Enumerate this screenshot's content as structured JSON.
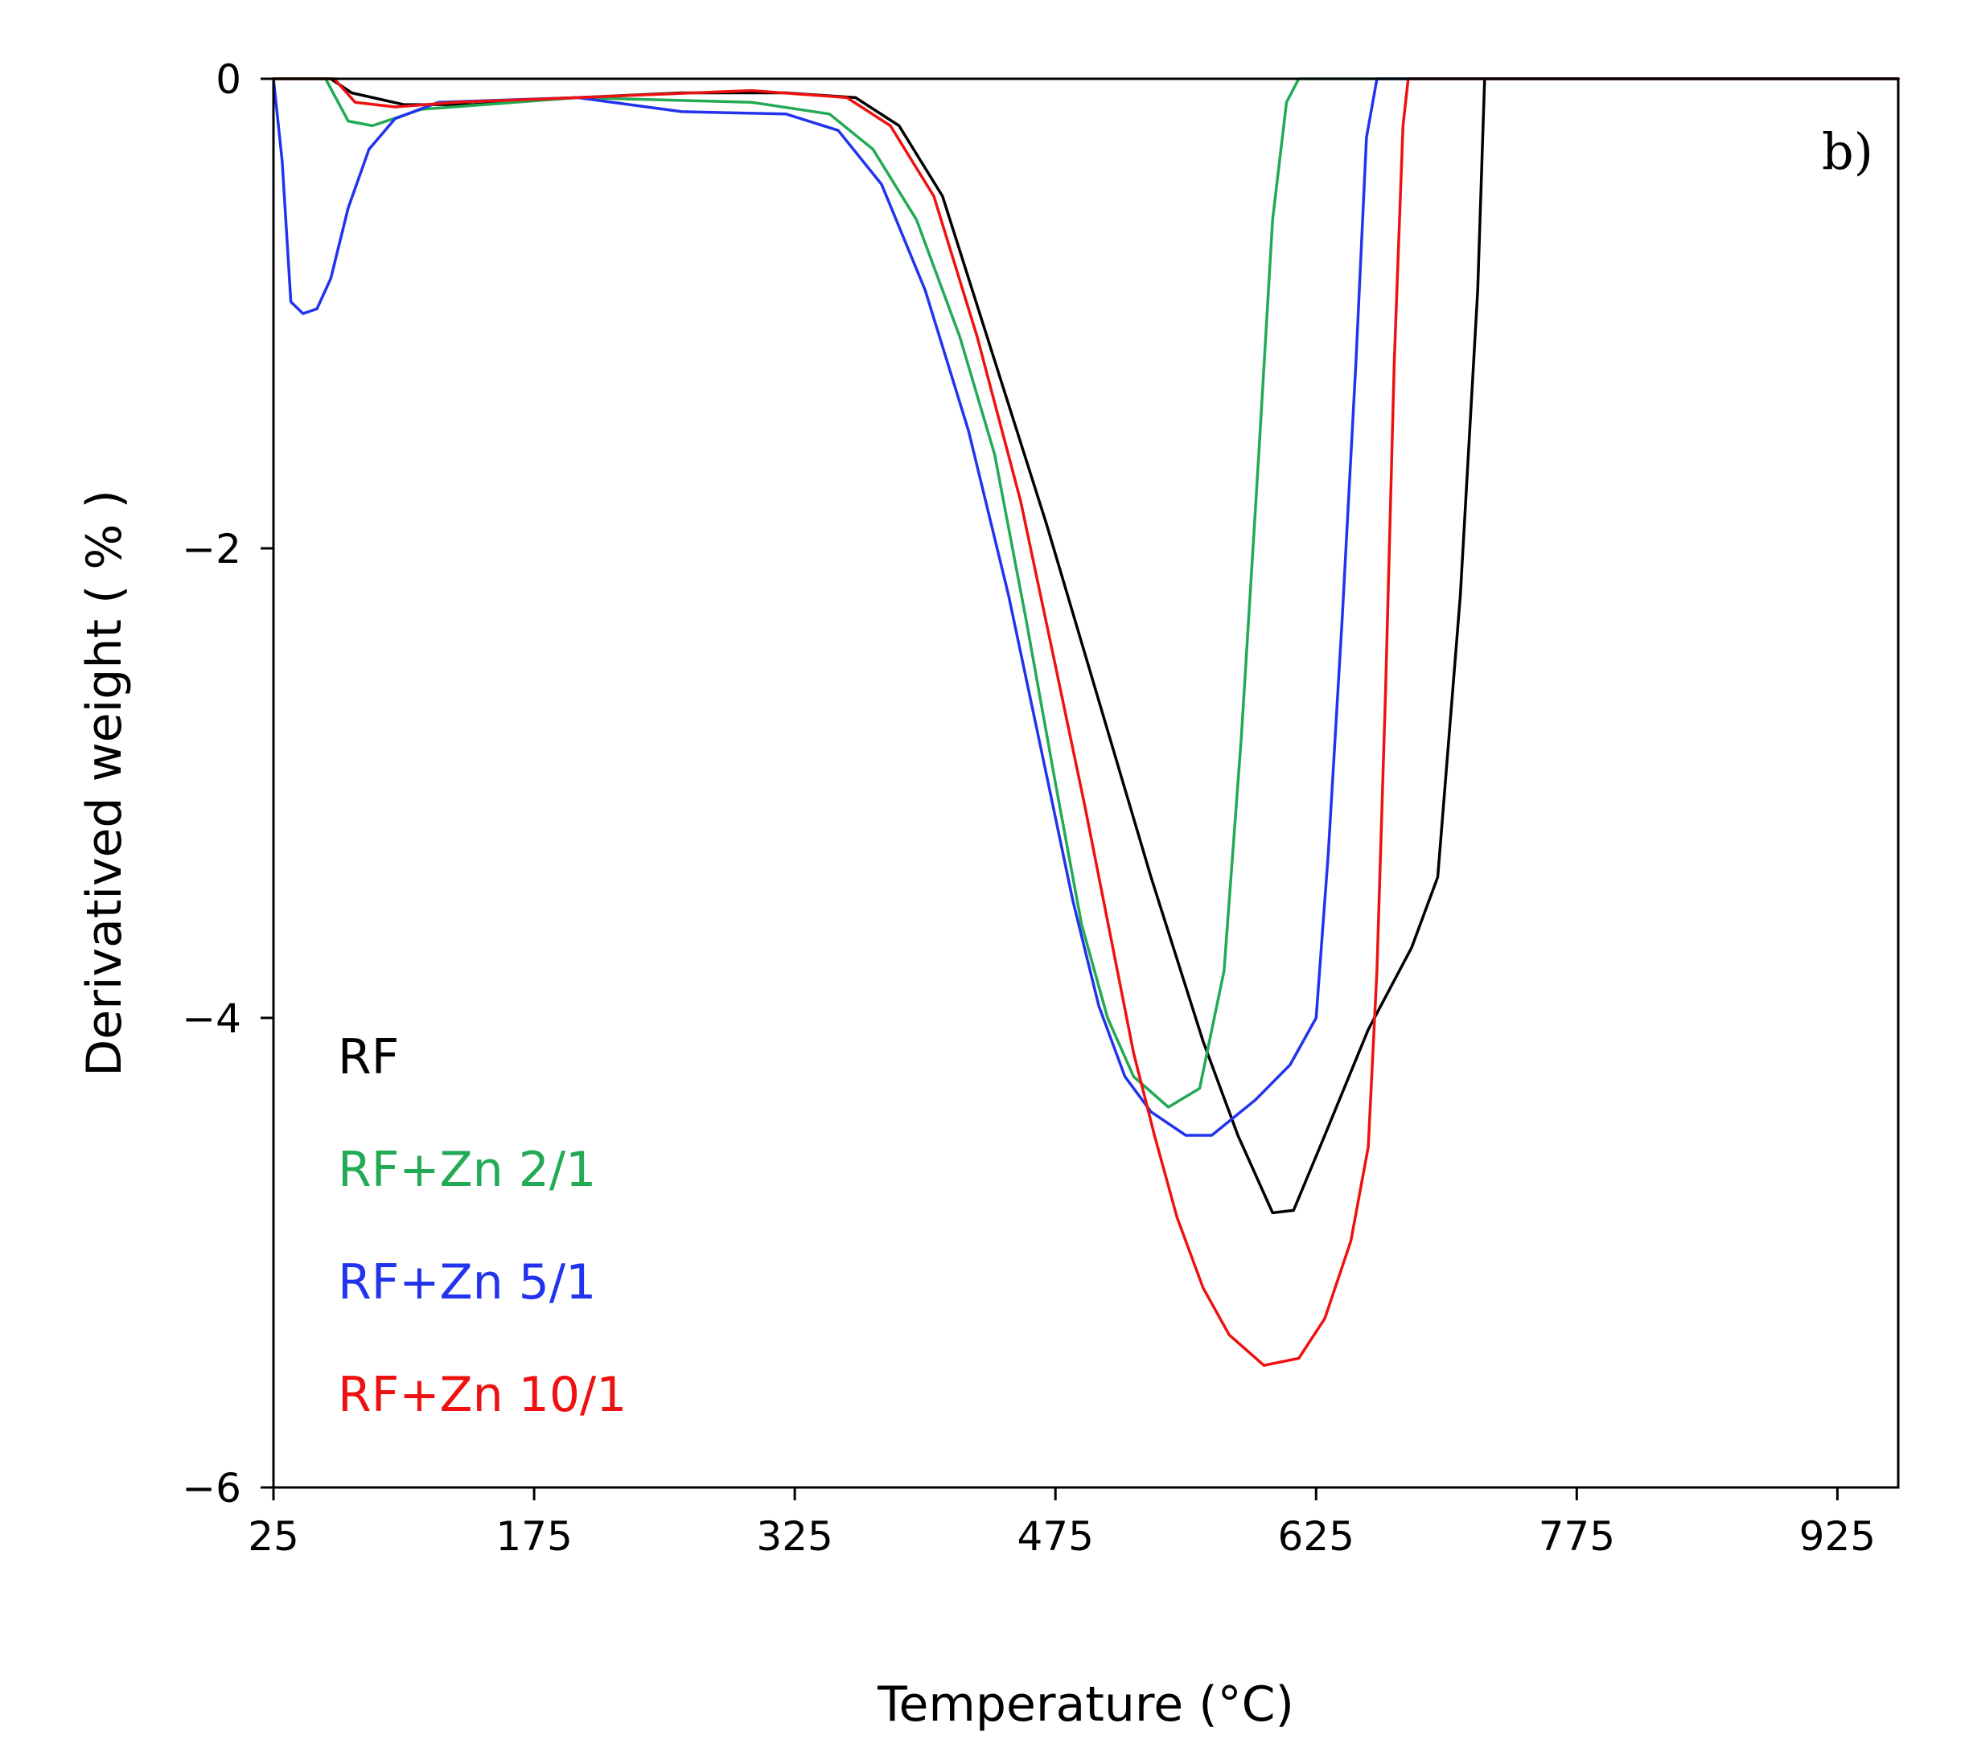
{
  "chart_data": {
    "type": "line",
    "panel_label": "b)",
    "xlabel": "Temperature (°C)",
    "ylabel": "Derivatived weight ( % )",
    "xlim": [
      25,
      960
    ],
    "ylim": [
      -6,
      0
    ],
    "x_ticks": [
      25,
      175,
      325,
      475,
      625,
      775,
      925
    ],
    "y_ticks": [
      0,
      -2,
      -4,
      -6
    ],
    "grid": false,
    "legend_position": "bottom-left",
    "series": [
      {
        "name": "RF",
        "color": "#000000",
        "points": [
          [
            25,
            0
          ],
          [
            58,
            0
          ],
          [
            70,
            -0.06
          ],
          [
            100,
            -0.11
          ],
          [
            140,
            -0.11
          ],
          [
            200,
            -0.08
          ],
          [
            260,
            -0.06
          ],
          [
            320,
            -0.06
          ],
          [
            360,
            -0.08
          ],
          [
            385,
            -0.2
          ],
          [
            410,
            -0.5
          ],
          [
            440,
            -1.2
          ],
          [
            470,
            -1.9
          ],
          [
            500,
            -2.65
          ],
          [
            530,
            -3.4
          ],
          [
            560,
            -4.1
          ],
          [
            580,
            -4.5
          ],
          [
            600,
            -4.83
          ],
          [
            612,
            -4.82
          ],
          [
            630,
            -4.5
          ],
          [
            655,
            -4.05
          ],
          [
            680,
            -3.7
          ],
          [
            695,
            -3.4
          ],
          [
            708,
            -2.2
          ],
          [
            718,
            -0.9
          ],
          [
            722,
            0
          ],
          [
            960,
            0
          ]
        ]
      },
      {
        "name": "RF+Zn 2/1",
        "color": "#22aa55",
        "points": [
          [
            25,
            0
          ],
          [
            55,
            0
          ],
          [
            68,
            -0.18
          ],
          [
            82,
            -0.2
          ],
          [
            110,
            -0.13
          ],
          [
            200,
            -0.08
          ],
          [
            300,
            -0.1
          ],
          [
            345,
            -0.15
          ],
          [
            370,
            -0.3
          ],
          [
            395,
            -0.6
          ],
          [
            420,
            -1.1
          ],
          [
            440,
            -1.6
          ],
          [
            458,
            -2.3
          ],
          [
            475,
            -3.0
          ],
          [
            490,
            -3.6
          ],
          [
            505,
            -4.0
          ],
          [
            520,
            -4.25
          ],
          [
            540,
            -4.38
          ],
          [
            558,
            -4.3
          ],
          [
            572,
            -3.8
          ],
          [
            582,
            -2.8
          ],
          [
            592,
            -1.6
          ],
          [
            600,
            -0.6
          ],
          [
            608,
            -0.1
          ],
          [
            615,
            0
          ],
          [
            960,
            0
          ]
        ]
      },
      {
        "name": "RF+Zn 5/1",
        "color": "#2233ee",
        "points": [
          [
            25,
            0
          ],
          [
            30,
            -0.35
          ],
          [
            35,
            -0.95
          ],
          [
            42,
            -1.0
          ],
          [
            50,
            -0.98
          ],
          [
            58,
            -0.85
          ],
          [
            68,
            -0.55
          ],
          [
            80,
            -0.3
          ],
          [
            95,
            -0.17
          ],
          [
            120,
            -0.1
          ],
          [
            200,
            -0.08
          ],
          [
            260,
            -0.14
          ],
          [
            320,
            -0.15
          ],
          [
            350,
            -0.22
          ],
          [
            375,
            -0.45
          ],
          [
            400,
            -0.9
          ],
          [
            425,
            -1.5
          ],
          [
            448,
            -2.2
          ],
          [
            468,
            -2.9
          ],
          [
            485,
            -3.5
          ],
          [
            500,
            -3.95
          ],
          [
            515,
            -4.25
          ],
          [
            530,
            -4.4
          ],
          [
            550,
            -4.5
          ],
          [
            565,
            -4.5
          ],
          [
            590,
            -4.35
          ],
          [
            610,
            -4.2
          ],
          [
            625,
            -4.0
          ],
          [
            632,
            -3.3
          ],
          [
            640,
            -2.3
          ],
          [
            648,
            -1.2
          ],
          [
            654,
            -0.25
          ],
          [
            660,
            0
          ],
          [
            960,
            0
          ]
        ]
      },
      {
        "name": "RF+Zn 10/1",
        "color": "#ee1111",
        "points": [
          [
            25,
            0
          ],
          [
            60,
            0
          ],
          [
            72,
            -0.1
          ],
          [
            95,
            -0.12
          ],
          [
            130,
            -0.1
          ],
          [
            200,
            -0.08
          ],
          [
            300,
            -0.05
          ],
          [
            355,
            -0.08
          ],
          [
            380,
            -0.2
          ],
          [
            405,
            -0.5
          ],
          [
            430,
            -1.1
          ],
          [
            455,
            -1.8
          ],
          [
            475,
            -2.5
          ],
          [
            492,
            -3.1
          ],
          [
            508,
            -3.7
          ],
          [
            520,
            -4.15
          ],
          [
            532,
            -4.5
          ],
          [
            545,
            -4.85
          ],
          [
            560,
            -5.15
          ],
          [
            575,
            -5.35
          ],
          [
            595,
            -5.48
          ],
          [
            615,
            -5.45
          ],
          [
            630,
            -5.28
          ],
          [
            645,
            -4.95
          ],
          [
            655,
            -4.55
          ],
          [
            660,
            -3.8
          ],
          [
            665,
            -2.6
          ],
          [
            670,
            -1.2
          ],
          [
            675,
            -0.2
          ],
          [
            678,
            0
          ],
          [
            960,
            0
          ]
        ]
      }
    ],
    "legend": [
      "RF",
      "RF+Zn 2/1",
      "RF+Zn 5/1",
      "RF+Zn 10/1"
    ]
  }
}
